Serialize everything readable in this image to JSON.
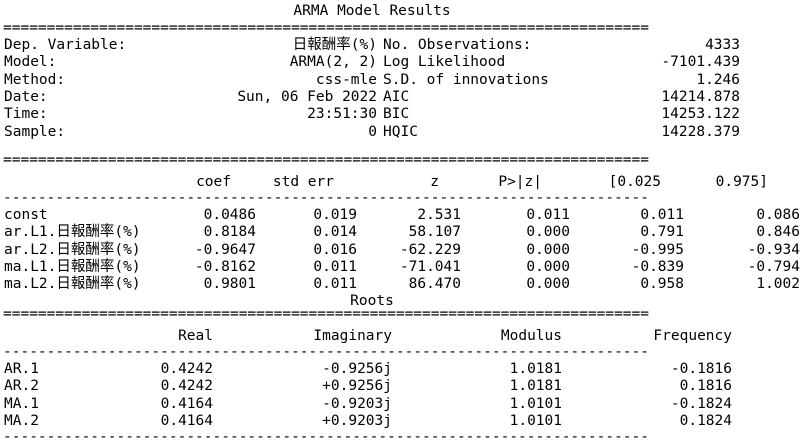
{
  "title": "ARMA Model Results",
  "roots_title": "Roots",
  "rule_double": "==========================================================================",
  "rule_single": "--------------------------------------------------------------------------",
  "summary": {
    "left": [
      {
        "label": "Dep. Variable:",
        "value": "日報酬率(%)"
      },
      {
        "label": "Model:",
        "value": "ARMA(2, 2)"
      },
      {
        "label": "Method:",
        "value": "css-mle"
      },
      {
        "label": "Date:",
        "value": "Sun, 06 Feb 2022"
      },
      {
        "label": "Time:",
        "value": "23:51:30"
      },
      {
        "label": "Sample:",
        "value": "0"
      }
    ],
    "right": [
      {
        "label": "No. Observations:",
        "value": "4333"
      },
      {
        "label": "Log Likelihood",
        "value": "-7101.439"
      },
      {
        "label": "S.D. of innovations",
        "value": "1.246"
      },
      {
        "label": "AIC",
        "value": "14214.878"
      },
      {
        "label": "BIC",
        "value": "14253.122"
      },
      {
        "label": "HQIC",
        "value": "14228.379"
      }
    ]
  },
  "coef_table": {
    "headers": [
      "coef",
      "std err",
      "z",
      "P>|z|",
      "[0.025",
      "0.975]"
    ],
    "rows": [
      {
        "name": "const",
        "values": [
          "0.0486",
          "0.019",
          "2.531",
          "0.011",
          "0.011",
          "0.086"
        ]
      },
      {
        "name": "ar.L1.日報酬率(%)",
        "values": [
          "0.8184",
          "0.014",
          "58.107",
          "0.000",
          "0.791",
          "0.846"
        ]
      },
      {
        "name": "ar.L2.日報酬率(%)",
        "values": [
          "-0.9647",
          "0.016",
          "-62.229",
          "0.000",
          "-0.995",
          "-0.934"
        ]
      },
      {
        "name": "ma.L1.日報酬率(%)",
        "values": [
          "-0.8162",
          "0.011",
          "-71.041",
          "0.000",
          "-0.839",
          "-0.794"
        ]
      },
      {
        "name": "ma.L2.日報酬率(%)",
        "values": [
          "0.9801",
          "0.011",
          "86.470",
          "0.000",
          "0.958",
          "1.002"
        ]
      }
    ]
  },
  "roots_table": {
    "headers": [
      "Real",
      "Imaginary",
      "Modulus",
      "Frequency"
    ],
    "rows": [
      {
        "name": "AR.1",
        "values": [
          "0.4242",
          "-0.9256j",
          "1.0181",
          "-0.1816"
        ]
      },
      {
        "name": "AR.2",
        "values": [
          "0.4242",
          "+0.9256j",
          "1.0181",
          "0.1816"
        ]
      },
      {
        "name": "MA.1",
        "values": [
          "0.4164",
          "-0.9203j",
          "1.0101",
          "-0.1824"
        ]
      },
      {
        "name": "MA.2",
        "values": [
          "0.4164",
          "+0.9203j",
          "1.0101",
          "0.1824"
        ]
      }
    ]
  }
}
